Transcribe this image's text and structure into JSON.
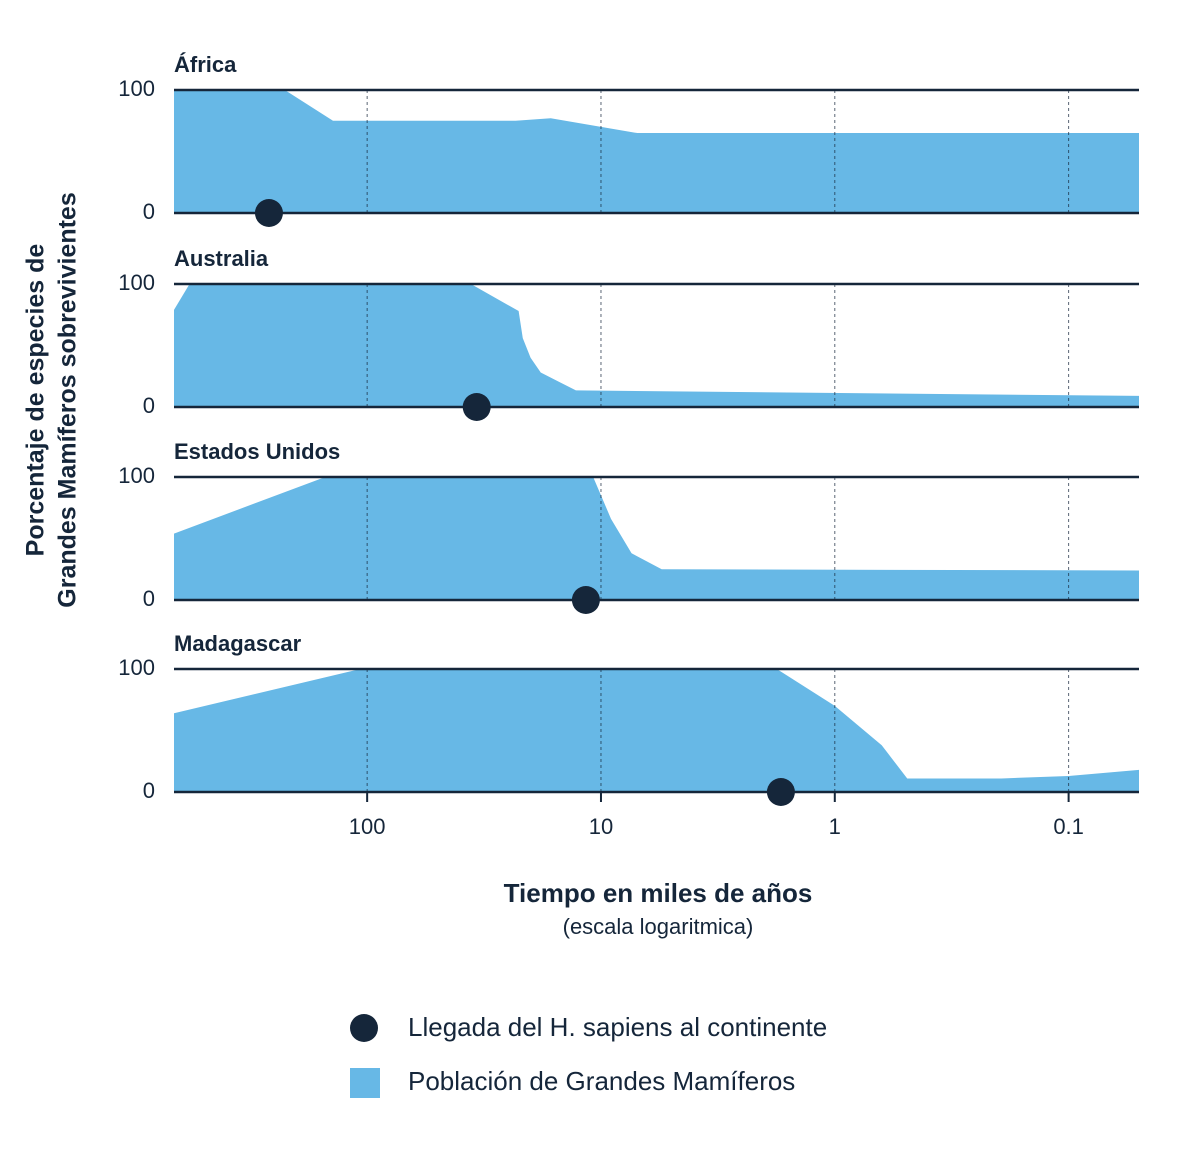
{
  "y_label": [
    "Porcentaje de especies de",
    "Grandes Mamíferos sobrevivientes"
  ],
  "x_label": "Tiempo en miles de años",
  "x_note": "(escala logaritmica)",
  "xlim": [
    670,
    0.05
  ],
  "xticks": [
    100,
    10,
    1,
    0.1
  ],
  "xscale": "log",
  "legend": [
    {
      "name": "Llegada del H. sapiens al continente",
      "color": "#15263a"
    },
    {
      "name": "Población de Grandes Mamíferos",
      "color": "#67b8e6"
    }
  ],
  "chart_data": [
    {
      "type": "area",
      "title": "África",
      "color": "#67b8e6",
      "x": [
        670,
        225,
        140,
        23.2,
        16.4,
        7,
        0.05
      ],
      "values": [
        100,
        100,
        75,
        75,
        77,
        65,
        65
      ],
      "arrival": 263,
      "ylim": [
        0,
        100
      ],
      "yticks": [
        0,
        100
      ]
    },
    {
      "type": "area",
      "title": "Australia",
      "color": "#67b8e6",
      "x": [
        670,
        575,
        36,
        22.5,
        21.6,
        20,
        18.1,
        12.8,
        0.05
      ],
      "values": [
        79,
        100,
        100,
        78,
        56,
        40,
        28,
        13.5,
        9
      ],
      "arrival": 34,
      "ylim": [
        0,
        100
      ],
      "yticks": [
        0,
        100
      ]
    },
    {
      "type": "area",
      "title": "Estados Unidos",
      "color": "#67b8e6",
      "x": [
        670,
        151,
        10.8,
        9.06,
        7.4,
        5.5,
        0.05
      ],
      "values": [
        54,
        100,
        100,
        66,
        38,
        25,
        24
      ],
      "arrival": 11.6,
      "ylim": [
        0,
        100
      ],
      "yticks": [
        0,
        100
      ]
    },
    {
      "type": "area",
      "title": "Madagascar",
      "color": "#67b8e6",
      "x": [
        670,
        107,
        1.77,
        1,
        0.63,
        0.49,
        0.194,
        0.1,
        0.05
      ],
      "values": [
        64,
        100,
        100,
        70,
        38,
        11,
        11,
        13,
        18
      ],
      "arrival": 1.7,
      "ylim": [
        0,
        100
      ],
      "yticks": [
        0,
        100
      ]
    }
  ]
}
